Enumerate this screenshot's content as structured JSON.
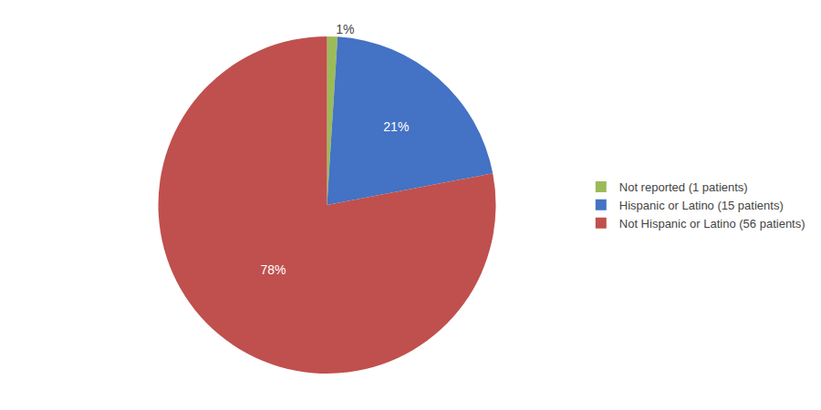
{
  "chart_data": {
    "type": "pie",
    "categories": [
      "Not reported (1 patients)",
      "Hispanic or Latino (15 patients)",
      "Not Hispanic or Latino (56 patients)"
    ],
    "values": [
      1,
      21,
      78
    ],
    "value_labels": [
      "1%",
      "21%",
      "78%"
    ],
    "colors": [
      "#9BBB59",
      "#4472C4",
      "#C0504D"
    ],
    "data_labels": true,
    "legend": "right"
  }
}
